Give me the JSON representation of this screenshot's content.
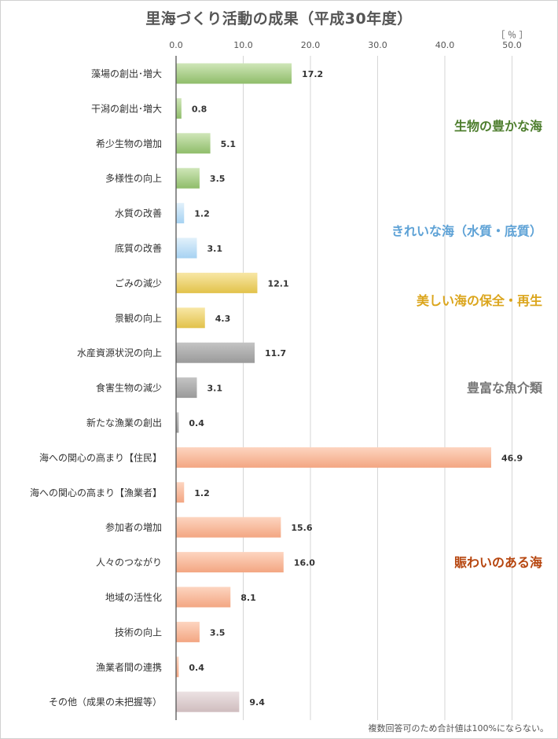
{
  "title": "里海づくり活動の成果（平成30年度）",
  "footnote": "複数回答可のため合計値は100%にならない。",
  "chart_data": {
    "type": "bar",
    "orientation": "horizontal",
    "title": "里海づくり活動の成果（平成30年度）",
    "xlabel": "",
    "ylabel": "",
    "unit_label": "［ ％ ］",
    "xlim": [
      0,
      50
    ],
    "xticks": [
      "0.0",
      "10.0",
      "20.0",
      "30.0",
      "40.0",
      "50.0"
    ],
    "grid": true,
    "categories": [
      "藻場の創出･増大",
      "干潟の創出･増大",
      "希少生物の増加",
      "多様性の向上",
      "水質の改善",
      "底質の改善",
      "ごみの減少",
      "景観の向上",
      "水産資源状況の向上",
      "食害生物の減少",
      "新たな漁業の創出",
      "海への関心の高まり【住民】",
      "海への関心の高まり【漁業者】",
      "参加者の増加",
      "人々のつながり",
      "地域の活性化",
      "技術の向上",
      "漁業者間の連携",
      "その他（成果の未把握等）"
    ],
    "values": [
      17.2,
      0.8,
      5.1,
      3.5,
      1.2,
      3.1,
      12.1,
      4.3,
      11.7,
      3.1,
      0.4,
      46.9,
      1.2,
      15.6,
      16.0,
      8.1,
      3.5,
      0.4,
      9.4
    ],
    "value_labels": [
      "17.2",
      "0.8",
      "5.1",
      "3.5",
      "1.2",
      "3.1",
      "12.1",
      "4.3",
      "11.7",
      "3.1",
      "0.4",
      "46.9",
      "1.2",
      "15.6",
      "16.0",
      "8.1",
      "3.5",
      "0.4",
      "9.4"
    ],
    "groups": [
      {
        "name": "生物の豊かな海",
        "start": 0,
        "end": 3,
        "color": "#4e7e2e",
        "bar_light": "#cfe6b8",
        "bar_dark": "#8fbd6a"
      },
      {
        "name": "きれいな海（水質・底質）",
        "start": 4,
        "end": 5,
        "color": "#5ea2d6",
        "bar_light": "#e2f1fb",
        "bar_dark": "#a6d2f2"
      },
      {
        "name": "美しい海の保全・再生",
        "start": 6,
        "end": 7,
        "color": "#dba51c",
        "bar_light": "#f8e7a6",
        "bar_dark": "#e2c24a"
      },
      {
        "name": "豊富な魚介類",
        "start": 8,
        "end": 10,
        "color": "#777777",
        "bar_light": "#c4c4c4",
        "bar_dark": "#9a9a9a"
      },
      {
        "name": "賑わいのある海",
        "start": 11,
        "end": 17,
        "color": "#b6450e",
        "bar_light": "#fdd5c0",
        "bar_dark": "#f3a682"
      },
      {
        "name": "",
        "start": 18,
        "end": 18,
        "color": "#999999",
        "bar_light": "#ece2e3",
        "bar_dark": "#cfbcbe"
      }
    ]
  }
}
